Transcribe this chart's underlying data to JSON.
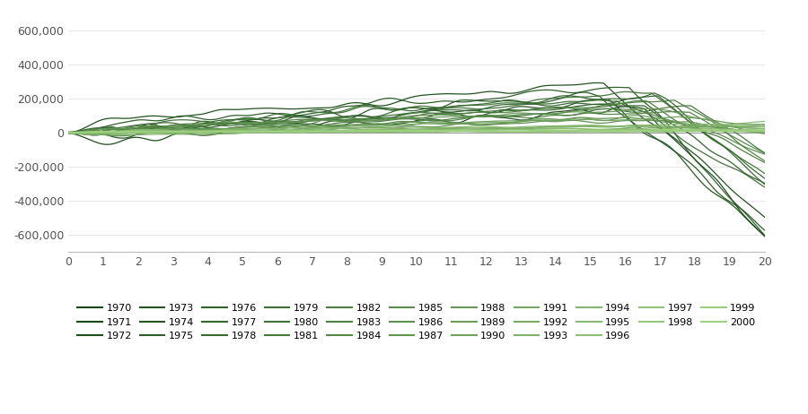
{
  "years": [
    1970,
    1971,
    1972,
    1973,
    1974,
    1975,
    1976,
    1977,
    1978,
    1979,
    1980,
    1981,
    1982,
    1983,
    1984,
    1985,
    1986,
    1987,
    1988,
    1989,
    1990,
    1991,
    1992,
    1993,
    1994,
    1995,
    1996,
    1997,
    1998,
    1999,
    2000
  ],
  "ylim": [
    -700000,
    700000
  ],
  "xlim": [
    0,
    20
  ],
  "yticks": [
    -600000,
    -400000,
    -200000,
    0,
    200000,
    400000,
    600000
  ],
  "xticks": [
    0,
    1,
    2,
    3,
    4,
    5,
    6,
    7,
    8,
    9,
    10,
    11,
    12,
    13,
    14,
    15,
    16,
    17,
    18,
    19,
    20
  ],
  "n_pts": 500,
  "seed": 7
}
